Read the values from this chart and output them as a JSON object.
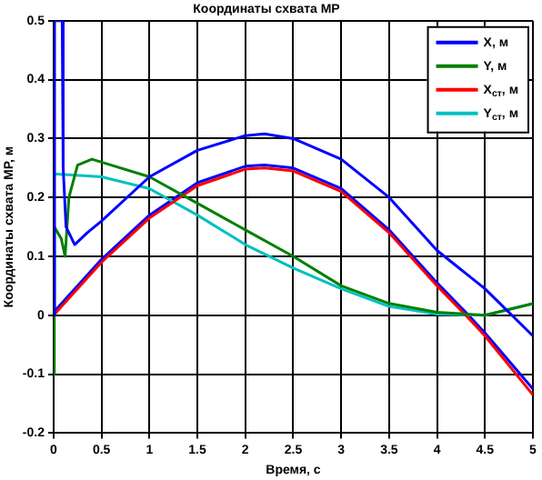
{
  "chart_data": {
    "type": "line",
    "title": "Координаты схвата МР",
    "xlabel": "Время, с",
    "ylabel": "Координаты схвата МР, м",
    "xlim": [
      0,
      5
    ],
    "xticks": [
      0,
      0.5,
      1,
      1.5,
      2,
      2.5,
      3,
      3.5,
      4,
      4.5,
      5
    ],
    "ylim": [
      -0.2,
      0.5
    ],
    "yticks": [
      -0.2,
      -0.1,
      0,
      0.1,
      0.2,
      0.3,
      0.4,
      0.5
    ],
    "grid": true,
    "legend": "top right",
    "marker": "none",
    "line_style": "solid",
    "series": [
      {
        "name": "X, м",
        "color": "#0000ff",
        "x": [
          0,
          0.01,
          0.09,
          0.1,
          0.13,
          0.22,
          0.35,
          0.5,
          1,
          1.5,
          2,
          2.2,
          2.5,
          3,
          3.5,
          4,
          4.5,
          5
        ],
        "values": [
          0,
          0.5,
          0.5,
          0.25,
          0.15,
          0.12,
          0.14,
          0.16,
          0.235,
          0.28,
          0.305,
          0.308,
          0.3,
          0.265,
          0.2,
          0.11,
          0.045,
          -0.035
        ]
      },
      {
        "name": "Y, м",
        "color": "#008000",
        "x": [
          0,
          0.005,
          0.01,
          0.08,
          0.12,
          0.16,
          0.25,
          0.4,
          0.5,
          1,
          1.5,
          2,
          2.5,
          3,
          3.5,
          4,
          4.5,
          5
        ],
        "values": [
          0,
          -0.1,
          0.15,
          0.13,
          0.1,
          0.2,
          0.255,
          0.265,
          0.26,
          0.235,
          0.19,
          0.145,
          0.1,
          0.05,
          0.02,
          0.005,
          0,
          0.02
        ]
      },
      {
        "name": "X$_{ст}$, м",
        "color": "#ff0000",
        "x": [
          0,
          0.5,
          1,
          1.5,
          2,
          2.2,
          2.5,
          3,
          3.5,
          4,
          4.3,
          4.5,
          5
        ],
        "values": [
          0,
          0.09,
          0.165,
          0.22,
          0.248,
          0.25,
          0.245,
          0.21,
          0.14,
          0.05,
          0,
          -0.035,
          -0.135
        ]
      },
      {
        "name": "Y$_{ст}$, м",
        "color": "#00c0c0",
        "x": [
          0,
          0.5,
          1,
          1.5,
          2,
          2.5,
          3,
          3.5,
          4,
          4.5,
          5
        ],
        "values": [
          0.24,
          0.235,
          0.215,
          0.17,
          0.12,
          0.08,
          0.045,
          0.015,
          0.002,
          0,
          0.02
        ]
      },
      {
        "color": "#0000ff",
        "x": [
          0,
          0.5,
          1,
          1.5,
          2,
          2.2,
          2.5,
          3,
          3.5,
          4,
          4.3,
          4.5,
          5
        ],
        "values": [
          0.005,
          0.095,
          0.17,
          0.225,
          0.253,
          0.255,
          0.25,
          0.215,
          0.145,
          0.055,
          0.005,
          -0.03,
          -0.125
        ]
      }
    ]
  }
}
